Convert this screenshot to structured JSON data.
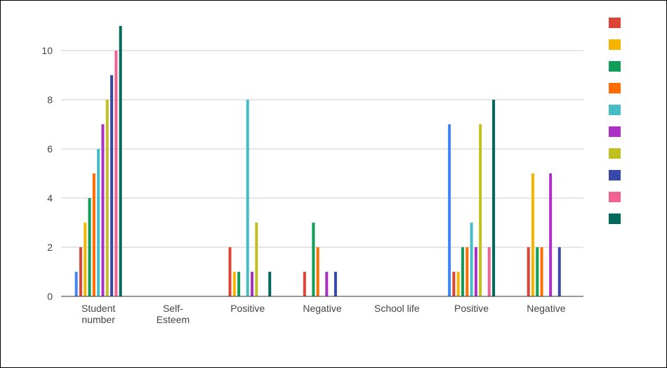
{
  "chart_data": {
    "type": "bar",
    "title": "",
    "xlabel": "",
    "ylabel": "",
    "ylim": [
      0,
      11
    ],
    "yticks": [
      0,
      2,
      4,
      6,
      8,
      10
    ],
    "grid": true,
    "legend": "right",
    "categories": [
      [
        "Student",
        "number"
      ],
      [
        "Self-",
        "Esteem"
      ],
      [
        "Positive"
      ],
      [
        "Negative"
      ],
      [
        "School life"
      ],
      [
        "Positive"
      ],
      [
        "Negative"
      ]
    ],
    "series": [
      {
        "color": "#4285f4",
        "values": [
          1,
          0,
          0,
          0,
          0,
          7,
          0
        ]
      },
      {
        "color": "#db4437",
        "values": [
          2,
          0,
          2,
          1,
          0,
          1,
          2
        ]
      },
      {
        "color": "#f4b400",
        "values": [
          3,
          0,
          1,
          0,
          0,
          1,
          5
        ]
      },
      {
        "color": "#0f9d58",
        "values": [
          4,
          0,
          1,
          3,
          0,
          2,
          2
        ]
      },
      {
        "color": "#ff6d00",
        "values": [
          5,
          0,
          0,
          2,
          0,
          2,
          2
        ]
      },
      {
        "color": "#46bdc6",
        "values": [
          6,
          0,
          8,
          0,
          0,
          3,
          0
        ]
      },
      {
        "color": "#ab30c4",
        "values": [
          7,
          0,
          1,
          1,
          0,
          2,
          5
        ]
      },
      {
        "color": "#c0c021",
        "values": [
          8,
          0,
          3,
          0,
          0,
          7,
          0
        ]
      },
      {
        "color": "#3949ab",
        "values": [
          9,
          0,
          0,
          1,
          0,
          0,
          2
        ]
      },
      {
        "color": "#f06292",
        "values": [
          10,
          0,
          0,
          0,
          0,
          2,
          0
        ]
      },
      {
        "color": "#00695c",
        "values": [
          11,
          0,
          1,
          0,
          0,
          8,
          0
        ]
      }
    ],
    "legend_colors": [
      "#db4437",
      "#f4b400",
      "#0f9d58",
      "#ff6d00",
      "#46bdc6",
      "#ab30c4",
      "#c0c021",
      "#3949ab",
      "#f06292",
      "#00695c"
    ]
  }
}
